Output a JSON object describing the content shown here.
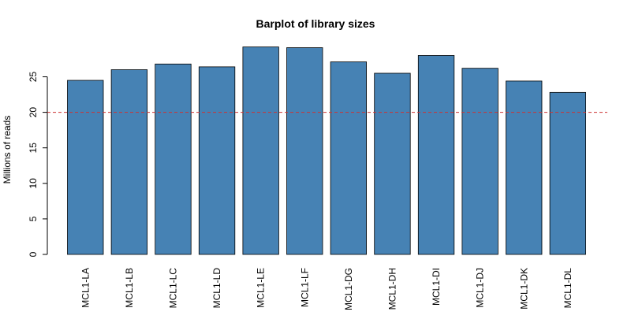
{
  "chart_data": {
    "type": "bar",
    "title": "Barplot of library sizes",
    "xlabel": "",
    "ylabel": "Millions of reads",
    "categories": [
      "MCL1-LA",
      "MCL1-LB",
      "MCL1-LC",
      "MCL1-LD",
      "MCL1-LE",
      "MCL1-LF",
      "MCL1-DG",
      "MCL1-DH",
      "MCL1-DI",
      "MCL1-DJ",
      "MCL1-DK",
      "MCL1-DL"
    ],
    "values": [
      24.5,
      26.0,
      26.8,
      26.4,
      29.2,
      29.1,
      27.1,
      25.5,
      28.0,
      26.2,
      24.4,
      22.8
    ],
    "ylim": [
      0,
      30
    ],
    "yticks": [
      0,
      5,
      10,
      15,
      20,
      25
    ],
    "reference_line": {
      "y": 20,
      "color": "#cc3333",
      "style": "dashed"
    },
    "bar_color": "#4682b4",
    "grid": false,
    "legend": "none"
  }
}
